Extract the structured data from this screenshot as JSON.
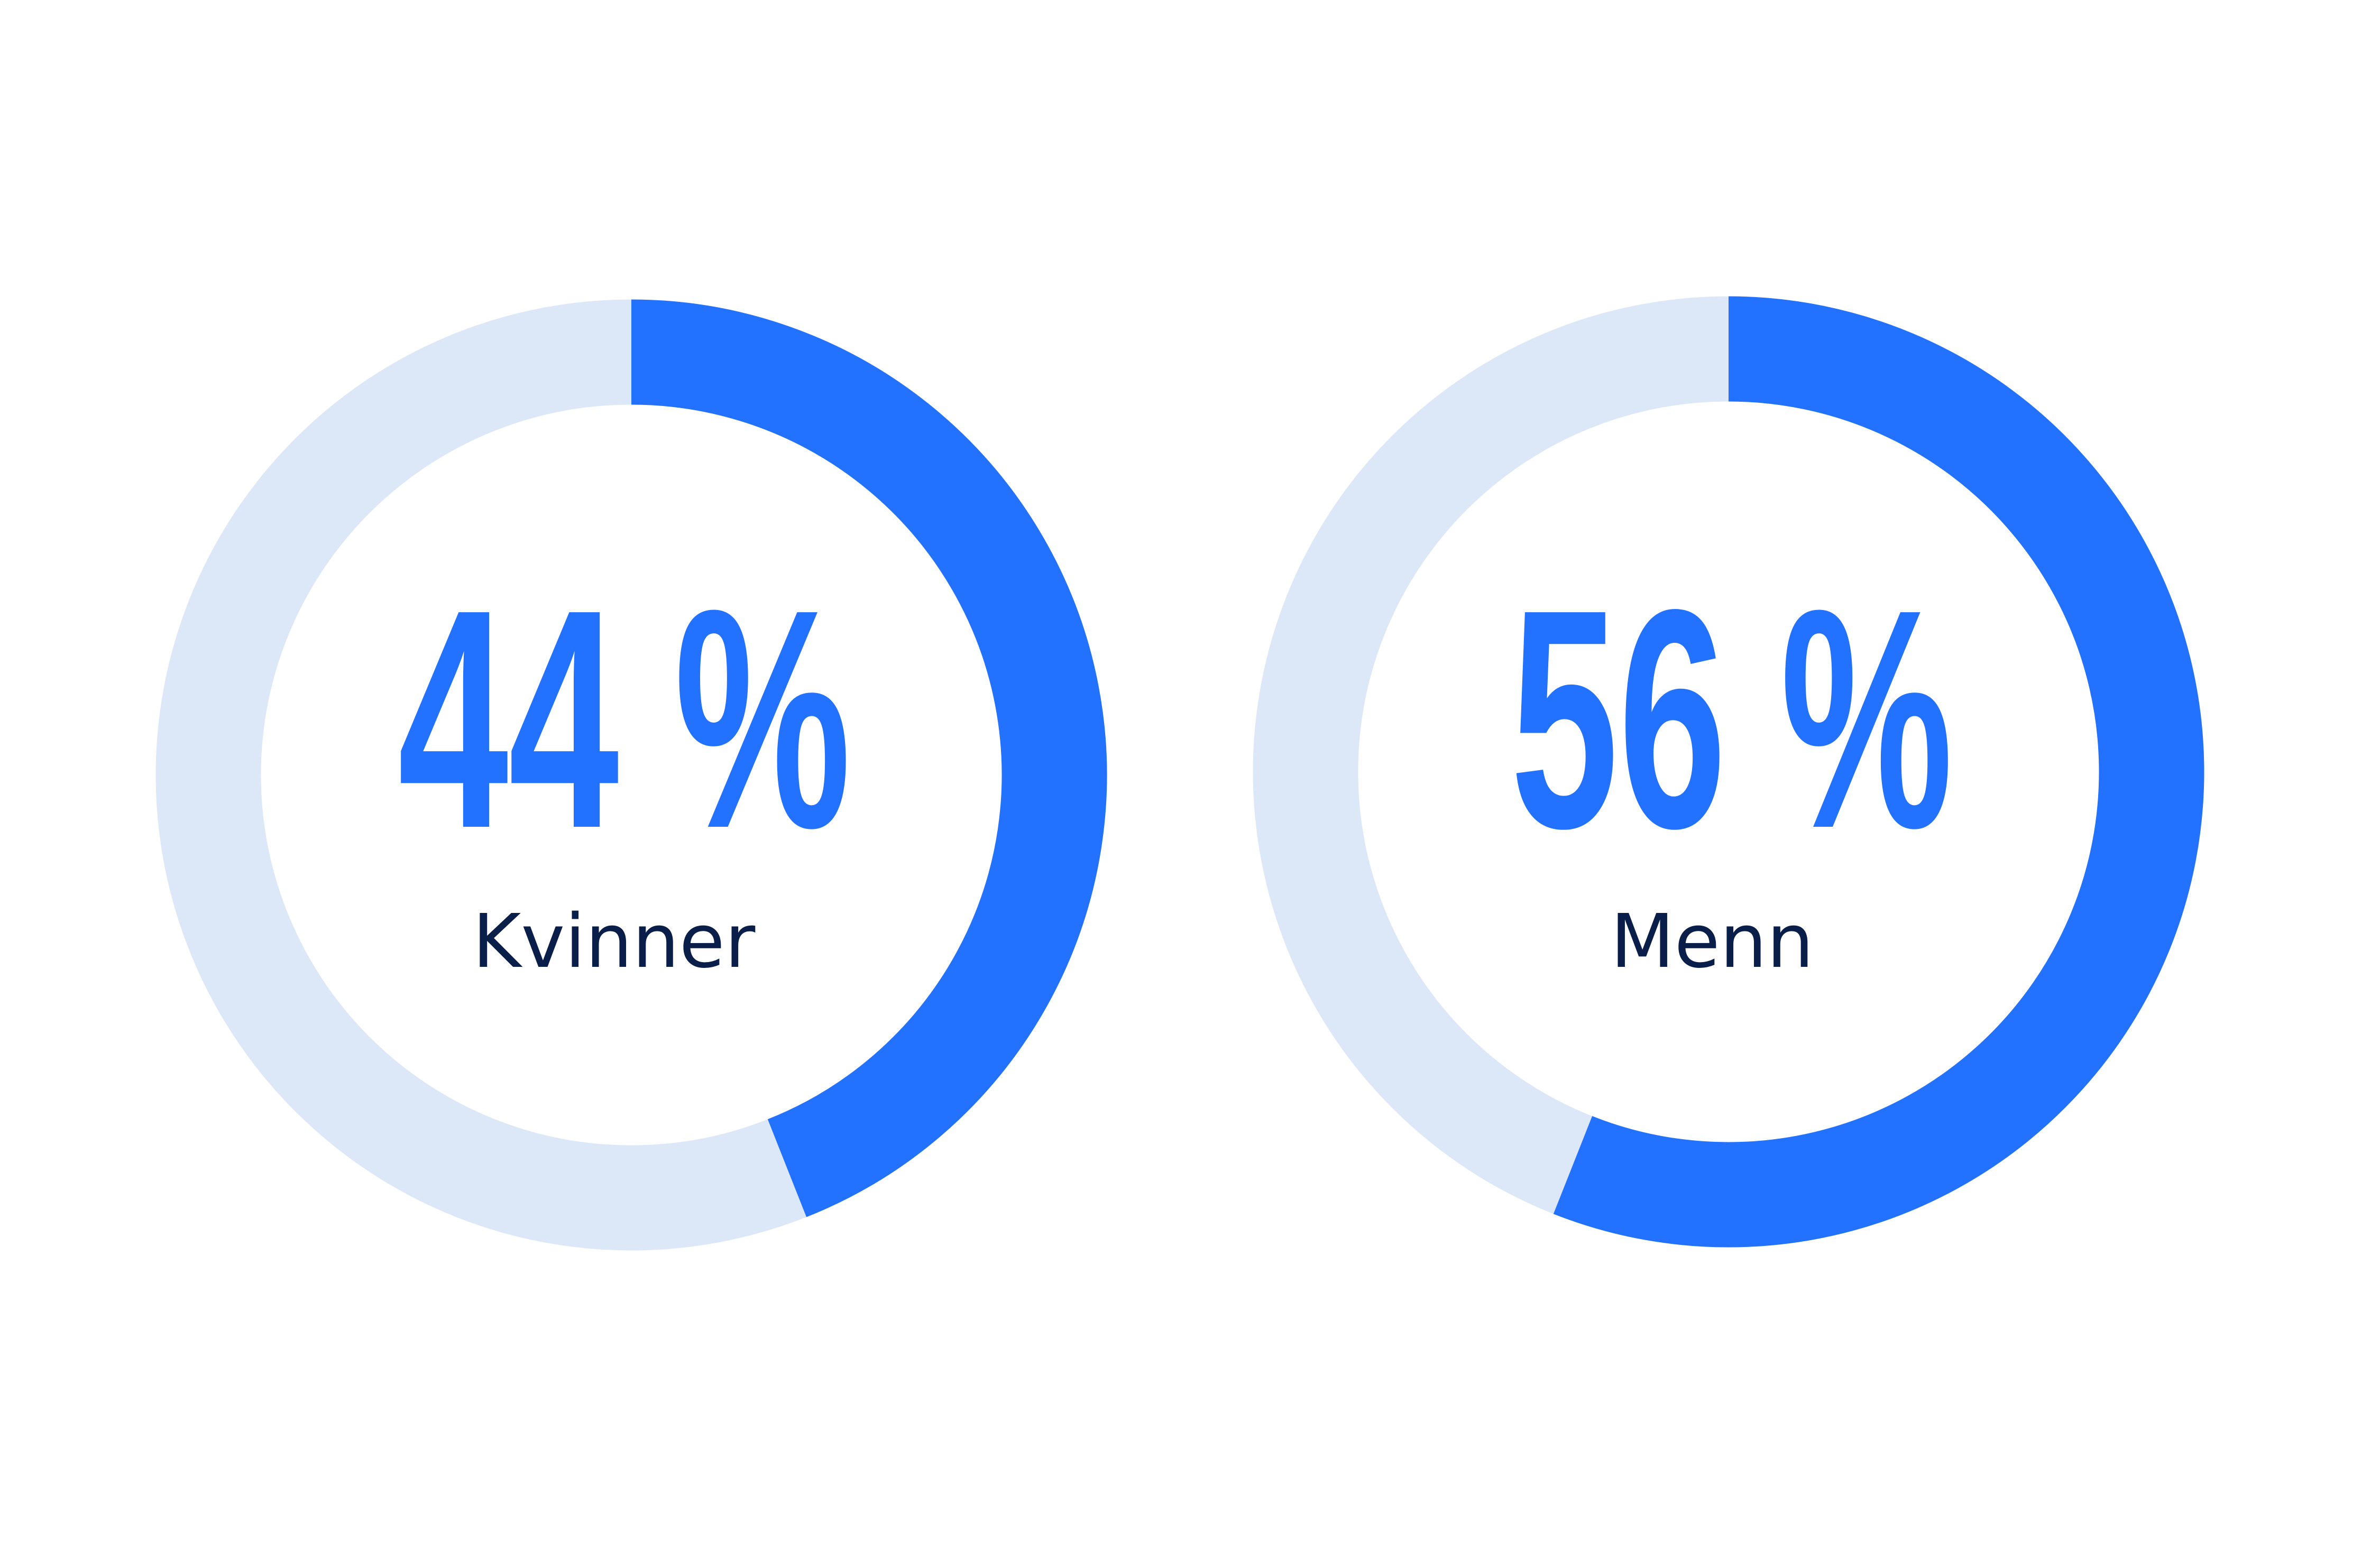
{
  "colors": {
    "filled": "#2272FF",
    "remainder": "#DCE8F7",
    "label": "#0A1E4A",
    "background": "#FFFFFF"
  },
  "chart_data": [
    {
      "type": "pie",
      "variant": "donut",
      "start": "top",
      "direction": "clockwise",
      "categories": [
        "Kvinner"
      ],
      "values": [
        44
      ],
      "value_label": "44 %",
      "label": "Kvinner"
    },
    {
      "type": "pie",
      "variant": "donut",
      "start": "top",
      "direction": "clockwise",
      "categories": [
        "Menn"
      ],
      "values": [
        56
      ],
      "value_label": "56 %",
      "label": "Menn"
    }
  ]
}
